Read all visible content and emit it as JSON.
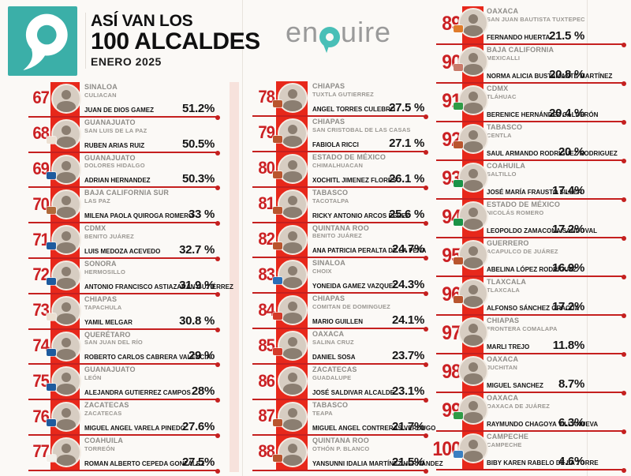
{
  "header": {
    "title_line1": "ASÍ VAN LOS",
    "title_line2": "100 ALCALDES",
    "subtitle": "ENERO 2025"
  },
  "brand": {
    "pre": "en",
    "post": "uire",
    "name": "enquire"
  },
  "colors": {
    "strip_red": "#e7281b",
    "line_red": "#c5201f",
    "number_red": "#cb2023",
    "teal": "#3bafa8"
  },
  "chart_data": {
    "type": "table",
    "title": "ASÍ VAN LOS 100 ALCALDES — ENERO 2025",
    "columns": [
      "rank",
      "state",
      "city",
      "mayor",
      "approval"
    ],
    "rows": [
      {
        "rank": "67",
        "state": "SINALOA",
        "city": "CULIACAN",
        "mayor": "JUAN DE DIOS GAMEZ",
        "approval": "51.2%",
        "badge": null
      },
      {
        "rank": "68",
        "state": "GUANAJUATO",
        "city": "SAN LUIS DE LA PAZ",
        "mayor": "RUBEN ARIAS RUIZ",
        "approval": "50.5%",
        "badge": "#ece0d2"
      },
      {
        "rank": "69",
        "state": "GUANAJUATO",
        "city": "DOLORES HIDALGO",
        "mayor": "ADRIAN HERNANDEZ",
        "approval": "50.3%",
        "badge": "#1e5b9e"
      },
      {
        "rank": "70",
        "state": "BAJA CALIFORNIA SUR",
        "city": "LAS PAZ",
        "mayor": "MILENA PAOLA QUIROGA ROMERO",
        "approval": "33 %",
        "badge": "#b06a3a"
      },
      {
        "rank": "71",
        "state": "CDMX",
        "city": "BENITO JUÁREZ",
        "mayor": "LUIS MEDOZA ACEVEDO",
        "approval": "32.7 %",
        "badge": "#1e5b9e"
      },
      {
        "rank": "72",
        "state": "SONORA",
        "city": "HERMOSILLO",
        "mayor": "ANTONIO FRANCISCO ASTIAZARÁN GUTIÉRREZ",
        "approval": "31.9 %",
        "badge": "#1e5b9e"
      },
      {
        "rank": "73",
        "state": "CHIAPAS",
        "city": "TAPACHULA",
        "mayor": "YAMIL MELGAR",
        "approval": "30.8 %",
        "badge": "#ece0d2"
      },
      {
        "rank": "74",
        "state": "QUERÉTARO",
        "city": "SAN JUAN DEL RÍO",
        "mayor": "ROBERTO CARLOS CABRERA VALENCIA",
        "approval": "29 %",
        "badge": "#1e5b9e"
      },
      {
        "rank": "75",
        "state": "GUANAJUATO",
        "city": "LEÓN",
        "mayor": "ALEJANDRA GUTIERREZ CAMPOS",
        "approval": "28%",
        "badge": "#1e5b9e"
      },
      {
        "rank": "76",
        "state": "ZACATECAS",
        "city": "ZACATECAS",
        "mayor": "MIGUEL ANGEL VARELA PINEDO",
        "approval": "27.6%",
        "badge": "#1e5b9e"
      },
      {
        "rank": "77",
        "state": "COAHUILA",
        "city": "TORREÓN",
        "mayor": "ROMAN ALBERTO CEPEDA GONZÁLEZ",
        "approval": "27.5%",
        "badge": "#f2efe9"
      },
      {
        "rank": "78",
        "state": "CHIAPAS",
        "city": "TUXTLA GUTIERREZ",
        "mayor": "ANGEL TORRES CULEBRO",
        "approval": "27.5 %",
        "badge": "#b9552e"
      },
      {
        "rank": "79",
        "state": "CHIAPAS",
        "city": "SAN CRISTOBAL DE LAS CASAS",
        "mayor": "FABIOLA RICCI",
        "approval": "27.1 %",
        "badge": "#b9552e"
      },
      {
        "rank": "80",
        "state": "ESTADO DE MÉXICO",
        "city": "CHIMALHUACAN",
        "mayor": "XOCHITL JIMENEZ FLORES",
        "approval": "26.1 %",
        "badge": "#b9552e"
      },
      {
        "rank": "81",
        "state": "TABASCO",
        "city": "TACOTALPA",
        "mayor": "RICKY ANTONIO ARCOS PEREZ",
        "approval": "25.6 %",
        "badge": "#b9552e"
      },
      {
        "rank": "82",
        "state": "QUINTANA ROO",
        "city": "BENITO JUÁREZ",
        "mayor": "ANA PATRICIA PERALTA DE LA PEÑA",
        "approval": "24.7%",
        "badge": "#b9552e"
      },
      {
        "rank": "83",
        "state": "SINALOA",
        "city": "CHOIX",
        "mayor": "YONEIDA GAMEZ VAZQUEZ",
        "approval": "24.3%",
        "badge": "#2a6fb8"
      },
      {
        "rank": "84",
        "state": "CHIAPAS",
        "city": "COMITAN DE DOMINGUEZ",
        "mayor": "MARIO GUILLEN",
        "approval": "24.1%",
        "badge": "#d43a2a"
      },
      {
        "rank": "85",
        "state": "OAXACA",
        "city": "SALINA CRUZ",
        "mayor": "DANIEL SOSA",
        "approval": "23.7%",
        "badge": "#d43a2a"
      },
      {
        "rank": "86",
        "state": "ZACATECAS",
        "city": "GUADALUPE",
        "mayor": "JOSÉ SALDIVAR ALCALDE",
        "approval": "23.1%",
        "badge": null
      },
      {
        "rank": "87",
        "state": "TABASCO",
        "city": "TEAPA",
        "mayor": "MIGUEL ANGEL CONTRERAS VERDUGO",
        "approval": "21.7%",
        "badge": "#b9552e"
      },
      {
        "rank": "88",
        "state": "QUINTANA ROO",
        "city": "OTHÓN P. BLANCO",
        "mayor": "YANSUNNI IDALIA MARTÍNEZ HERNÁNDEZ",
        "approval": "21.5%",
        "badge": "#b9552e"
      },
      {
        "rank": "89",
        "state": "OAXACA",
        "city": "SAN JUAN BAUTISTA TUXTEPEC",
        "mayor": "FERNANDO HUERTA",
        "approval": "21.5 %",
        "badge": "#e07b2a"
      },
      {
        "rank": "90",
        "state": "BAJA CALIFORNIA",
        "city": "MEXICALLI",
        "mayor": "NORMA ALICIA BUSTAMANTE MARTÍNEZ",
        "approval": "20.8 %",
        "badge": "#c97a6a"
      },
      {
        "rank": "91",
        "state": "CDMX",
        "city": "TLÁHUAC",
        "mayor": "BERENICE HERNÁNDEZ CALDERÓN",
        "approval": "20.4 %",
        "badge": "#2e9b46"
      },
      {
        "rank": "92",
        "state": "TABASCO",
        "city": "CENTLA",
        "mayor": "SAUL ARMANDO RODRIGUEZ RODRIGUEZ",
        "approval": "20 %",
        "badge": "#b9552e"
      },
      {
        "rank": "93",
        "state": "COAHUILA",
        "city": "SALTILLO",
        "mayor": "JOSÉ MARÍA FRAUSTO SILLER",
        "approval": "17.4%",
        "badge": "#1a9347"
      },
      {
        "rank": "94",
        "state": "ESTADO DE MÉXICO",
        "city": "NICOLÁS ROMERO",
        "mayor": "LEOPOLDO ZAMACONA SANDOVAL",
        "approval": "17.2%",
        "badge": "#1a9347"
      },
      {
        "rank": "95",
        "state": "GUERRERO",
        "city": "ACAPULCO DE JUÁREZ",
        "mayor": "ABELINA LÓPEZ RODRÍGUEZ",
        "approval": "16.9%",
        "badge": "#b9552e"
      },
      {
        "rank": "96",
        "state": "TLAXCALA",
        "city": "TLAXCALA",
        "mayor": "ALFONSO SÁNCHEZ GRACÜA",
        "approval": "17.2%",
        "badge": "#b9552e"
      },
      {
        "rank": "97",
        "state": "CHIAPAS",
        "city": "FRONTERA COMALAPA",
        "mayor": "MARLI TREJO",
        "approval": "11.8%",
        "badge": null
      },
      {
        "rank": "98",
        "state": "OAXACA",
        "city": "JUCHITAN",
        "mayor": "MIGUEL SANCHEZ",
        "approval": "8.7%",
        "badge": null
      },
      {
        "rank": "99",
        "state": "OAXACA",
        "city": "OAXACA DE JUÁREZ",
        "mayor": "RAYMUNDO CHAGOYA VILLANUEVA",
        "approval": "6.3%",
        "badge": "#2e9b46"
      },
      {
        "rank": "100",
        "state": "CAMPECHE",
        "city": "CAMPECHE",
        "mayor": "BIBY KAREN RABELO DE LA TORRE",
        "approval": "4.6%",
        "badge": "#3a7fc1"
      }
    ],
    "column_split": [
      11,
      11,
      12
    ],
    "legend_position": "none",
    "grid": false
  }
}
